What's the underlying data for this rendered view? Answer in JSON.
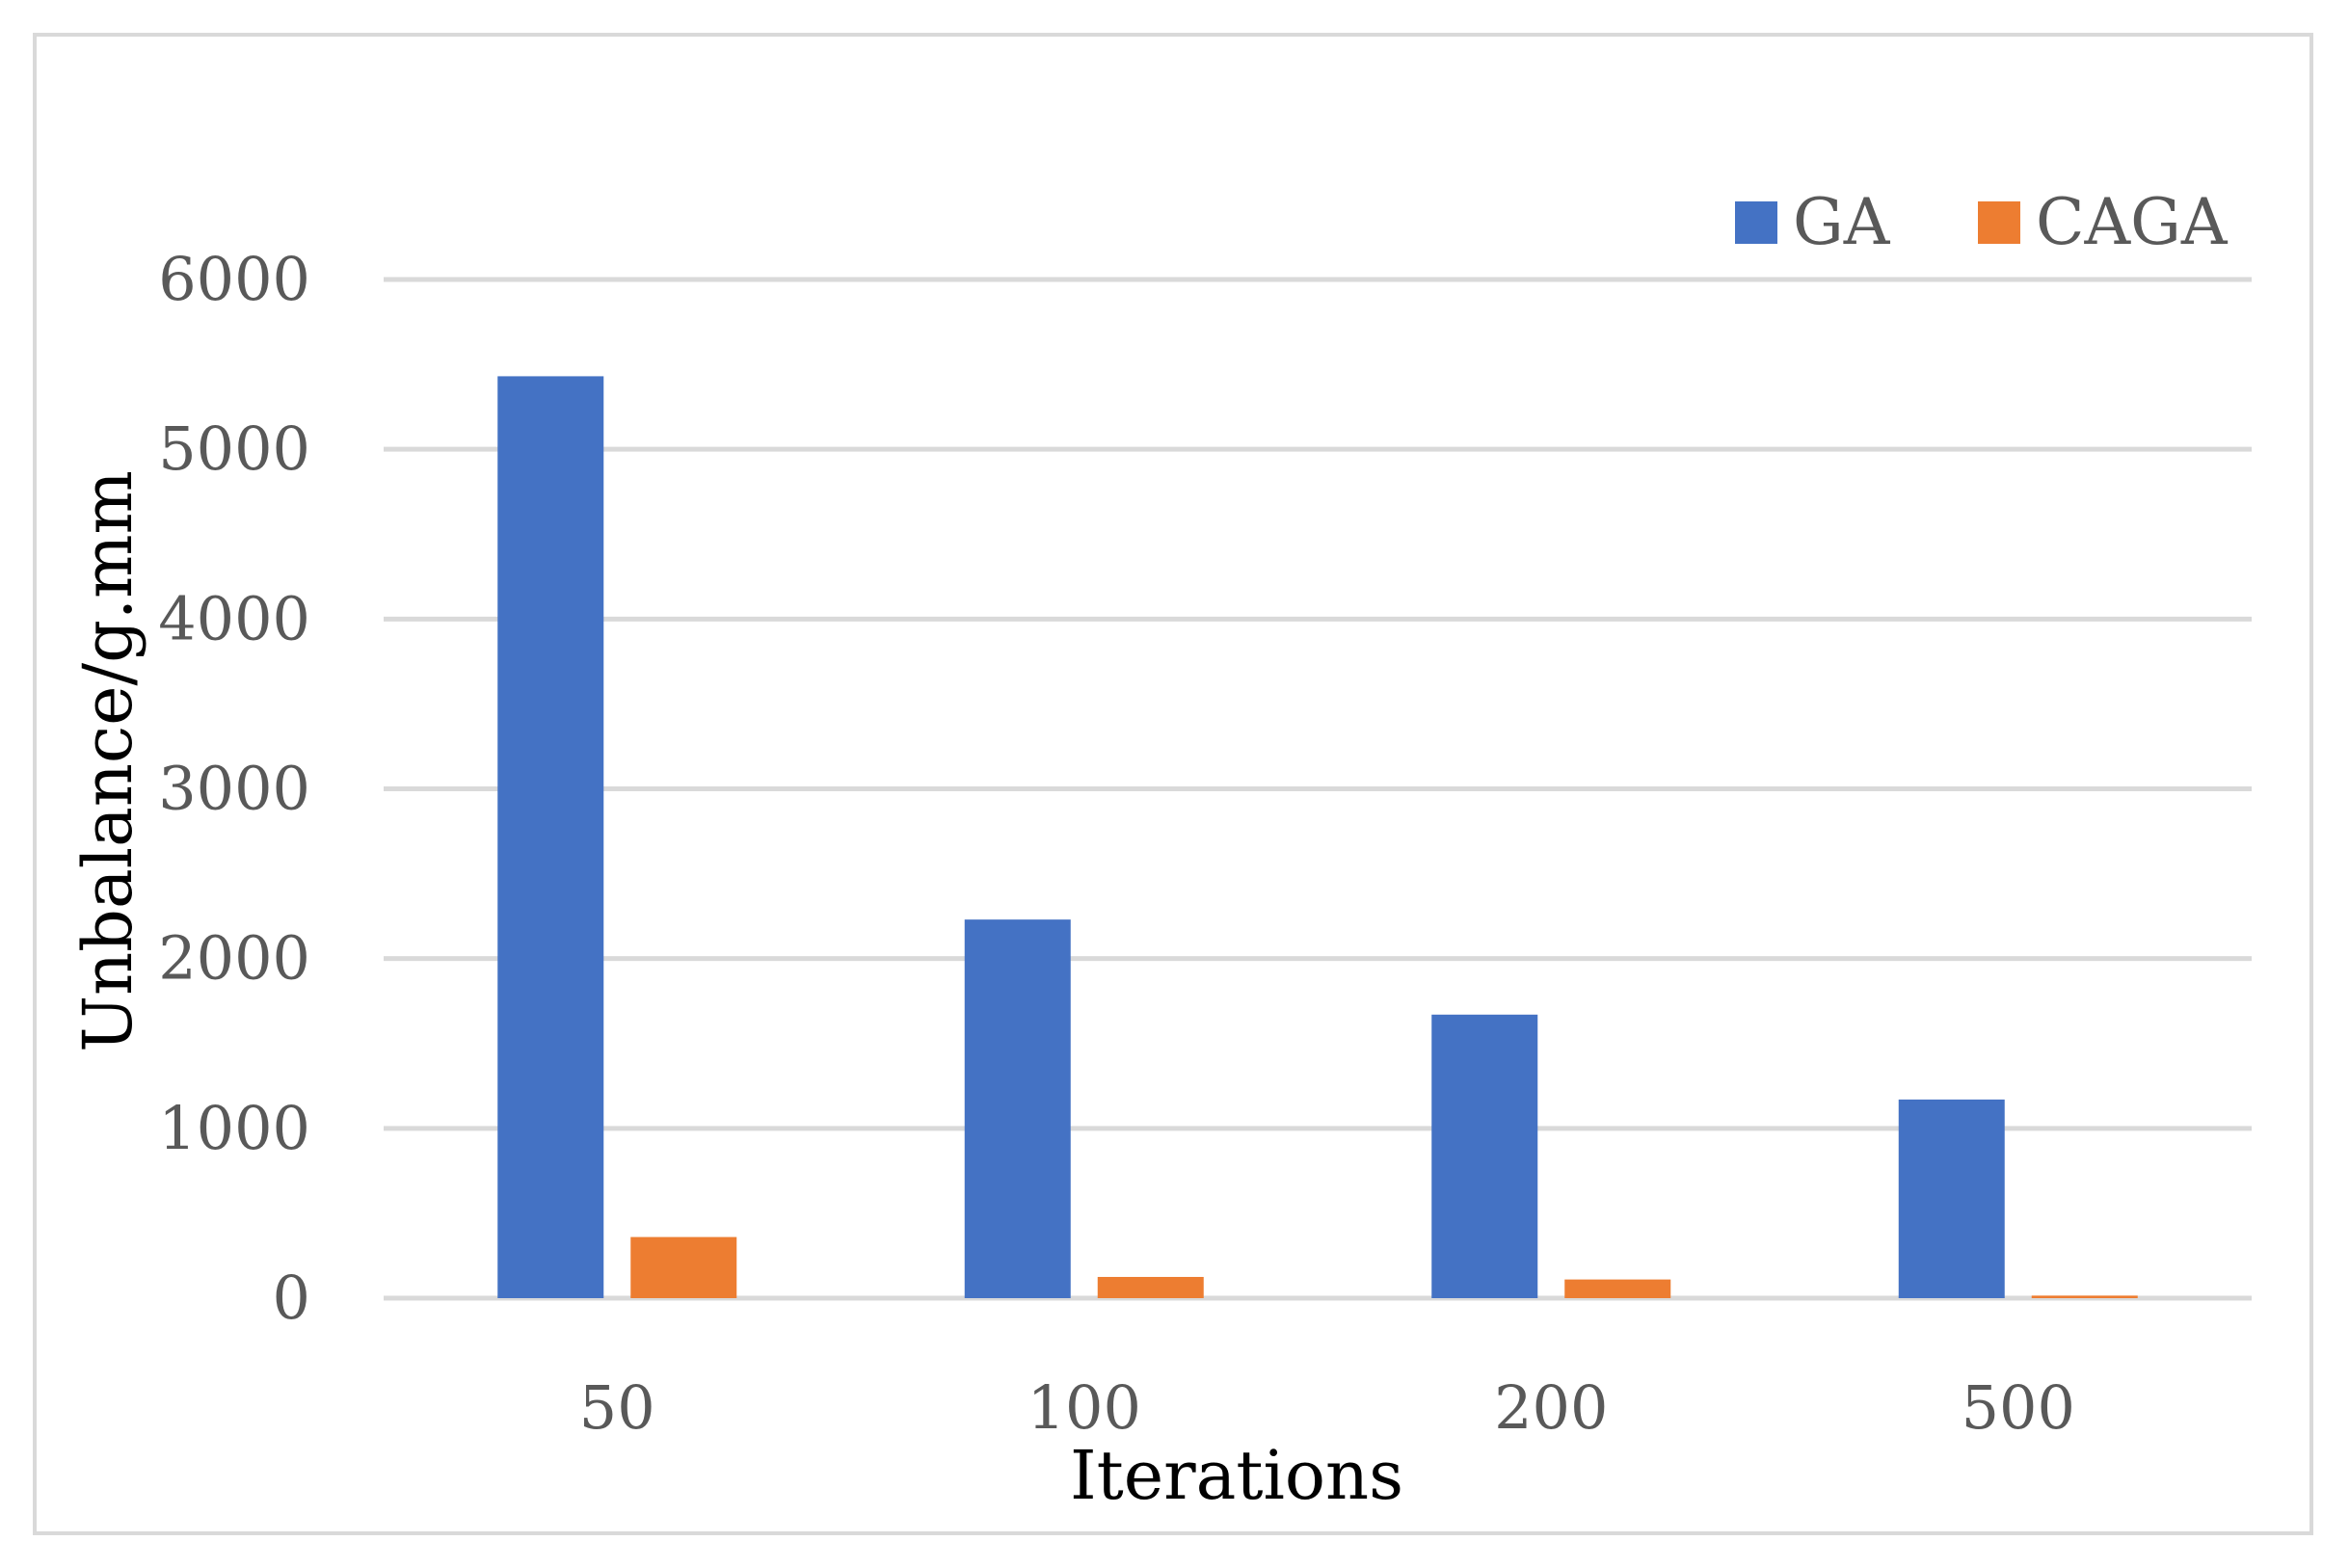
{
  "chart_data": {
    "type": "bar",
    "categories": [
      "50",
      "100",
      "200",
      "500"
    ],
    "series": [
      {
        "name": "GA",
        "values": [
          5430,
          2230,
          1670,
          1170
        ],
        "color": "#4472c4"
      },
      {
        "name": "CAGA",
        "values": [
          360,
          125,
          110,
          15
        ],
        "color": "#ed7d31"
      }
    ],
    "xlabel": "Iterations",
    "ylabel": "Unbalance/g.mm",
    "ylim": [
      0,
      6000
    ],
    "yticks": [
      0,
      1000,
      2000,
      3000,
      4000,
      5000,
      6000
    ],
    "grid": true,
    "legend_position": "top-right",
    "gridline_color": "#d9d9d9"
  }
}
